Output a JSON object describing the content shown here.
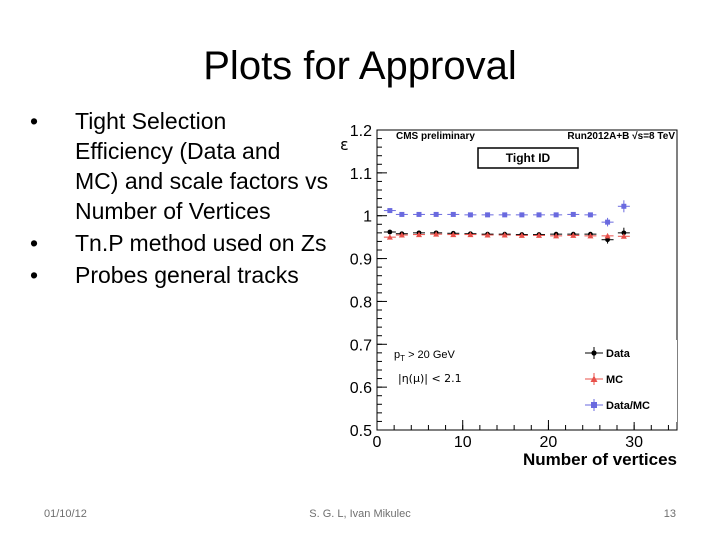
{
  "slide": {
    "title": "Plots for Approval",
    "bullets": [
      "Tight Selection Efficiency (Data and MC) and scale factors vs Number of Vertices",
      "Tn.P method used on Zs",
      "Probes general tracks"
    ],
    "footer": {
      "date": "01/10/12",
      "author": "S. G. L, Ivan Mikulec",
      "page": "13"
    }
  },
  "chart_data": {
    "type": "scatter",
    "header_left": "CMS preliminary",
    "header_right": "Run2012A+B  √s=8 TeV",
    "boxed_label": "Tight ID",
    "annotations": [
      "p",
      "T",
      " > 20 GeV",
      "|η(μ)| < 2.1"
    ],
    "ylabel": "ε",
    "xlabel": "Number of vertices",
    "xlim": [
      0,
      35
    ],
    "ylim": [
      0.5,
      1.2
    ],
    "xticks": [
      0,
      10,
      20,
      30
    ],
    "xtick_labels": [
      "0",
      "10",
      "20",
      "30"
    ],
    "yticks": [
      0.5,
      0.6,
      0.7,
      0.8,
      0.9,
      1.0,
      1.1,
      1.2
    ],
    "ytick_labels": [
      "0.5",
      "0.6",
      "0.7",
      "0.8",
      "0.9",
      "1",
      "1.1",
      "1.2"
    ],
    "grid": false,
    "legend_position": "bottom-right",
    "x": [
      1.5,
      2.9,
      4.9,
      6.9,
      8.9,
      10.9,
      12.9,
      14.9,
      16.9,
      18.9,
      20.9,
      22.9,
      24.9,
      26.9,
      28.8
    ],
    "series": [
      {
        "name": "Data",
        "color": "#000000",
        "values": [
          0.962,
          0.958,
          0.96,
          0.96,
          0.959,
          0.958,
          0.957,
          0.957,
          0.956,
          0.956,
          0.957,
          0.957,
          0.957,
          0.944,
          0.96
        ],
        "errors": [
          0.004,
          0.002,
          0.001,
          0.001,
          0.001,
          0.001,
          0.001,
          0.001,
          0.002,
          0.002,
          0.002,
          0.003,
          0.004,
          0.009,
          0.012
        ]
      },
      {
        "name": "MC",
        "color": "#e8504a",
        "values": [
          0.95,
          0.955,
          0.956,
          0.957,
          0.956,
          0.956,
          0.955,
          0.955,
          0.954,
          0.954,
          0.953,
          0.954,
          0.953,
          0.953,
          0.952
        ],
        "errors": [
          0.003,
          0.001,
          0.001,
          0.001,
          0.001,
          0.001,
          0.001,
          0.001,
          0.001,
          0.001,
          0.001,
          0.002,
          0.002,
          0.003,
          0.004
        ]
      },
      {
        "name": "Data/MC",
        "color": "#6a6adf",
        "values": [
          1.012,
          1.003,
          1.003,
          1.003,
          1.003,
          1.002,
          1.002,
          1.002,
          1.002,
          1.002,
          1.002,
          1.003,
          1.002,
          0.985,
          1.022
        ],
        "errors": [
          0.005,
          0.002,
          0.002,
          0.001,
          0.001,
          0.001,
          0.001,
          0.001,
          0.002,
          0.002,
          0.002,
          0.003,
          0.005,
          0.01,
          0.014
        ]
      }
    ]
  }
}
